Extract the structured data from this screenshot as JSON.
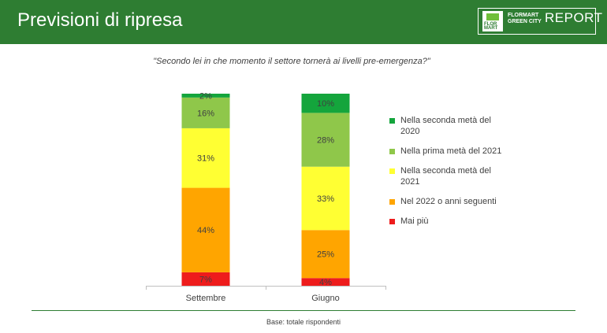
{
  "header": {
    "title": "Previsioni di ripresa",
    "logo": {
      "mark_text": "FLOR MART",
      "brand_line1": "FLORMART",
      "brand_line2": "GREEN CITY",
      "report": "REPORT"
    },
    "colors": {
      "bar": "#2e7d32"
    }
  },
  "question": "\"Secondo lei in che momento il settore tornerà ai livelli pre-emergenza?\"",
  "chart_data": {
    "type": "bar",
    "stacked": true,
    "orientation": "vertical",
    "categories": [
      "Settembre",
      "Giugno"
    ],
    "series": [
      {
        "name": "Mai più",
        "color": "#ee1c1c",
        "values": [
          7,
          4
        ],
        "labels": [
          "7%",
          "4%"
        ]
      },
      {
        "name": "Nel 2022 o anni seguenti",
        "color": "#ffa500",
        "values": [
          44,
          25
        ],
        "labels": [
          "44%",
          "25%"
        ]
      },
      {
        "name": "Nella seconda metà del 2021",
        "color": "#ffff33",
        "values": [
          31,
          33
        ],
        "labels": [
          "31%",
          "33%"
        ]
      },
      {
        "name": "Nella prima metà del 2021",
        "color": "#8fc74a",
        "values": [
          16,
          28
        ],
        "labels": [
          "16%",
          "28%"
        ]
      },
      {
        "name": "Nella seconda metà del 2020",
        "color": "#14a53c",
        "values": [
          2,
          10
        ],
        "labels": [
          "2%",
          "10%"
        ]
      }
    ],
    "ylim": [
      0,
      100
    ],
    "grid": false,
    "legend_position": "right"
  },
  "legend": [
    {
      "label": "Nella seconda metà del 2020",
      "color": "#14a53c"
    },
    {
      "label": "Nella prima metà del 2021",
      "color": "#8fc74a"
    },
    {
      "label": "Nella seconda metà del 2021",
      "color": "#ffff33"
    },
    {
      "label": "Nel 2022 o anni seguenti",
      "color": "#ffa500"
    },
    {
      "label": "Mai più",
      "color": "#ee1c1c"
    }
  ],
  "footer": {
    "note": "Base: totale rispondenti"
  }
}
